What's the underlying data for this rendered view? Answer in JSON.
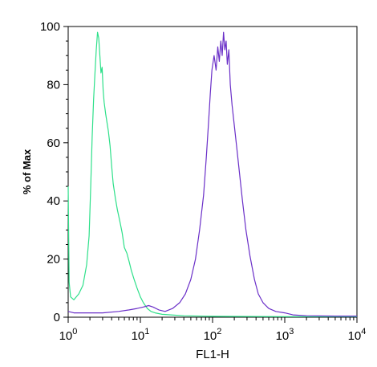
{
  "chart_data": {
    "type": "line",
    "xlabel": "FL1-H",
    "ylabel": "% of Max",
    "x_scale": "log",
    "xlim": [
      1,
      10000
    ],
    "ylim": [
      0,
      100
    ],
    "y_ticks": [
      "0",
      "20",
      "40",
      "60",
      "80",
      "100"
    ],
    "x_ticks": [
      {
        "base": "10",
        "exp": "0"
      },
      {
        "base": "10",
        "exp": "1"
      },
      {
        "base": "10",
        "exp": "2"
      },
      {
        "base": "10",
        "exp": "3"
      },
      {
        "base": "10",
        "exp": "4"
      }
    ],
    "grid": false,
    "legend": "none",
    "series": [
      {
        "color": "#2ee08a",
        "points": [
          [
            1.0,
            45
          ],
          [
            1.03,
            12
          ],
          [
            1.08,
            7
          ],
          [
            1.2,
            6
          ],
          [
            1.4,
            8
          ],
          [
            1.6,
            11
          ],
          [
            1.8,
            18
          ],
          [
            1.95,
            28
          ],
          [
            2.05,
            45
          ],
          [
            2.15,
            62
          ],
          [
            2.25,
            75
          ],
          [
            2.35,
            84
          ],
          [
            2.45,
            92
          ],
          [
            2.55,
            98
          ],
          [
            2.65,
            96
          ],
          [
            2.75,
            90
          ],
          [
            2.85,
            84
          ],
          [
            2.95,
            86
          ],
          [
            3.05,
            78
          ],
          [
            3.15,
            74
          ],
          [
            3.3,
            70
          ],
          [
            3.45,
            67
          ],
          [
            3.6,
            64
          ],
          [
            3.8,
            59
          ],
          [
            4.0,
            52
          ],
          [
            4.2,
            46
          ],
          [
            4.5,
            41
          ],
          [
            4.8,
            37
          ],
          [
            5.2,
            33
          ],
          [
            5.6,
            29
          ],
          [
            6.0,
            24
          ],
          [
            6.5,
            22
          ],
          [
            7.0,
            19
          ],
          [
            7.5,
            16
          ],
          [
            8.2,
            13
          ],
          [
            9.0,
            10
          ],
          [
            10,
            7
          ],
          [
            11,
            5
          ],
          [
            12.5,
            3
          ],
          [
            14,
            2
          ],
          [
            16,
            1.5
          ],
          [
            20,
            1
          ],
          [
            40,
            0.5
          ],
          [
            100,
            0.3
          ],
          [
            1000,
            0.2
          ],
          [
            10000,
            0.2
          ]
        ]
      },
      {
        "color": "#6a2fc8",
        "points": [
          [
            1.0,
            2
          ],
          [
            1.2,
            1.5
          ],
          [
            2,
            1.5
          ],
          [
            3,
            1.5
          ],
          [
            5,
            2
          ],
          [
            7,
            2.5
          ],
          [
            9,
            3
          ],
          [
            11,
            3.5
          ],
          [
            13,
            4
          ],
          [
            15,
            3.5
          ],
          [
            18,
            2.5
          ],
          [
            22,
            2
          ],
          [
            28,
            3
          ],
          [
            35,
            5
          ],
          [
            42,
            8
          ],
          [
            50,
            13
          ],
          [
            58,
            20
          ],
          [
            66,
            30
          ],
          [
            75,
            42
          ],
          [
            82,
            55
          ],
          [
            88,
            67
          ],
          [
            93,
            77
          ],
          [
            98,
            85
          ],
          [
            105,
            90
          ],
          [
            112,
            85
          ],
          [
            118,
            93
          ],
          [
            124,
            88
          ],
          [
            130,
            95
          ],
          [
            136,
            90
          ],
          [
            142,
            98
          ],
          [
            148,
            92
          ],
          [
            154,
            95
          ],
          [
            160,
            87
          ],
          [
            168,
            92
          ],
          [
            176,
            80
          ],
          [
            186,
            73
          ],
          [
            198,
            67
          ],
          [
            215,
            59
          ],
          [
            235,
            50
          ],
          [
            260,
            40
          ],
          [
            290,
            30
          ],
          [
            330,
            21
          ],
          [
            380,
            13
          ],
          [
            430,
            8
          ],
          [
            500,
            5
          ],
          [
            600,
            3
          ],
          [
            750,
            2
          ],
          [
            1000,
            1.5
          ],
          [
            1300,
            0.8
          ],
          [
            2000,
            0.5
          ],
          [
            5000,
            0.4
          ],
          [
            10000,
            0.4
          ]
        ]
      }
    ]
  }
}
